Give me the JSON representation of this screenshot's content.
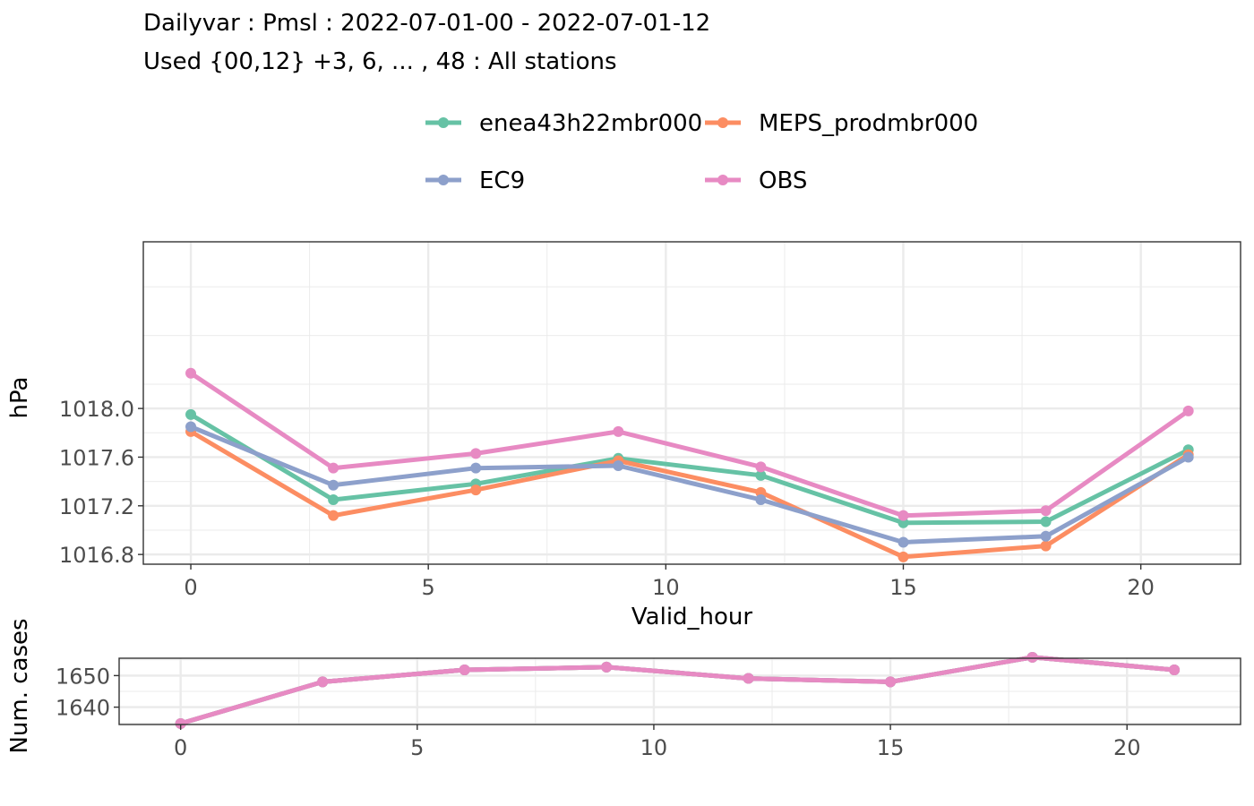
{
  "title": "Dailyvar : Pmsl : 2022-07-01-00 - 2022-07-01-12",
  "subtitle": "Used {00,12} +3, 6, ... , 48 : All stations",
  "legend": [
    {
      "name": "enea43h22mbr000",
      "color": "#66c2a5"
    },
    {
      "name": "MEPS_prodmbr000",
      "color": "#fc8d62"
    },
    {
      "name": "EC9",
      "color": "#8da0cb"
    },
    {
      "name": "OBS",
      "color": "#e78ac3"
    }
  ],
  "chart_data": [
    {
      "type": "line",
      "title": "",
      "xlabel": "Valid_hour",
      "ylabel": "hPa",
      "xlim": [
        -1,
        22.1
      ],
      "ylim": [
        1016.72,
        1019.37
      ],
      "xticks": [
        0,
        5,
        10,
        15,
        20
      ],
      "yticks": [
        1016.8,
        1017.2,
        1017.6,
        1018.0
      ],
      "ytick_labels": [
        "1016.8",
        "1017.2",
        "1017.6",
        "1018.0"
      ],
      "grid": true,
      "x": [
        0,
        3,
        6,
        9,
        12,
        15,
        18,
        21
      ],
      "series": [
        {
          "name": "enea43h22mbr000",
          "color": "#66c2a5",
          "values": [
            1017.95,
            1017.25,
            1017.38,
            1017.59,
            1017.45,
            1017.06,
            1017.07,
            1017.66
          ]
        },
        {
          "name": "MEPS_prodmbr000",
          "color": "#fc8d62",
          "values": [
            1017.81,
            1017.12,
            1017.33,
            1017.57,
            1017.31,
            1016.78,
            1016.87,
            1017.62
          ]
        },
        {
          "name": "EC9",
          "color": "#8da0cb",
          "values": [
            1017.85,
            1017.37,
            1017.51,
            1017.53,
            1017.25,
            1016.9,
            1016.95,
            1017.6
          ]
        },
        {
          "name": "OBS",
          "color": "#e78ac3",
          "values": [
            1018.29,
            1017.51,
            1017.63,
            1017.81,
            1017.52,
            1017.12,
            1017.16,
            1017.98
          ]
        }
      ]
    },
    {
      "type": "line",
      "title": "",
      "xlabel": "",
      "ylabel": "Num. cases",
      "xlim": [
        -1.3,
        22.4
      ],
      "ylim": [
        1634.5,
        1655.5
      ],
      "xticks": [
        0,
        5,
        10,
        15,
        20
      ],
      "yticks": [
        1640,
        1650
      ],
      "ytick_labels": [
        "1640",
        "1650"
      ],
      "grid": true,
      "x": [
        0,
        3,
        6,
        9,
        12,
        15,
        18,
        21
      ],
      "series": [
        {
          "name": "enea43h22mbr000",
          "color": "#66c2a5",
          "values": [
            1634.8,
            1648.0,
            1651.8,
            1652.7,
            1649.1,
            1648.0,
            1655.8,
            1651.8
          ]
        },
        {
          "name": "MEPS_prodmbr000",
          "color": "#fc8d62",
          "values": [
            1634.8,
            1648.0,
            1651.8,
            1652.7,
            1649.1,
            1648.0,
            1655.8,
            1651.8
          ]
        },
        {
          "name": "EC9",
          "color": "#8da0cb",
          "values": [
            1634.8,
            1648.0,
            1651.8,
            1652.7,
            1649.1,
            1648.0,
            1655.8,
            1651.8
          ]
        },
        {
          "name": "OBS",
          "color": "#e78ac3",
          "values": [
            1634.8,
            1648.0,
            1651.8,
            1652.7,
            1649.1,
            1648.0,
            1655.8,
            1651.8
          ]
        }
      ]
    }
  ]
}
